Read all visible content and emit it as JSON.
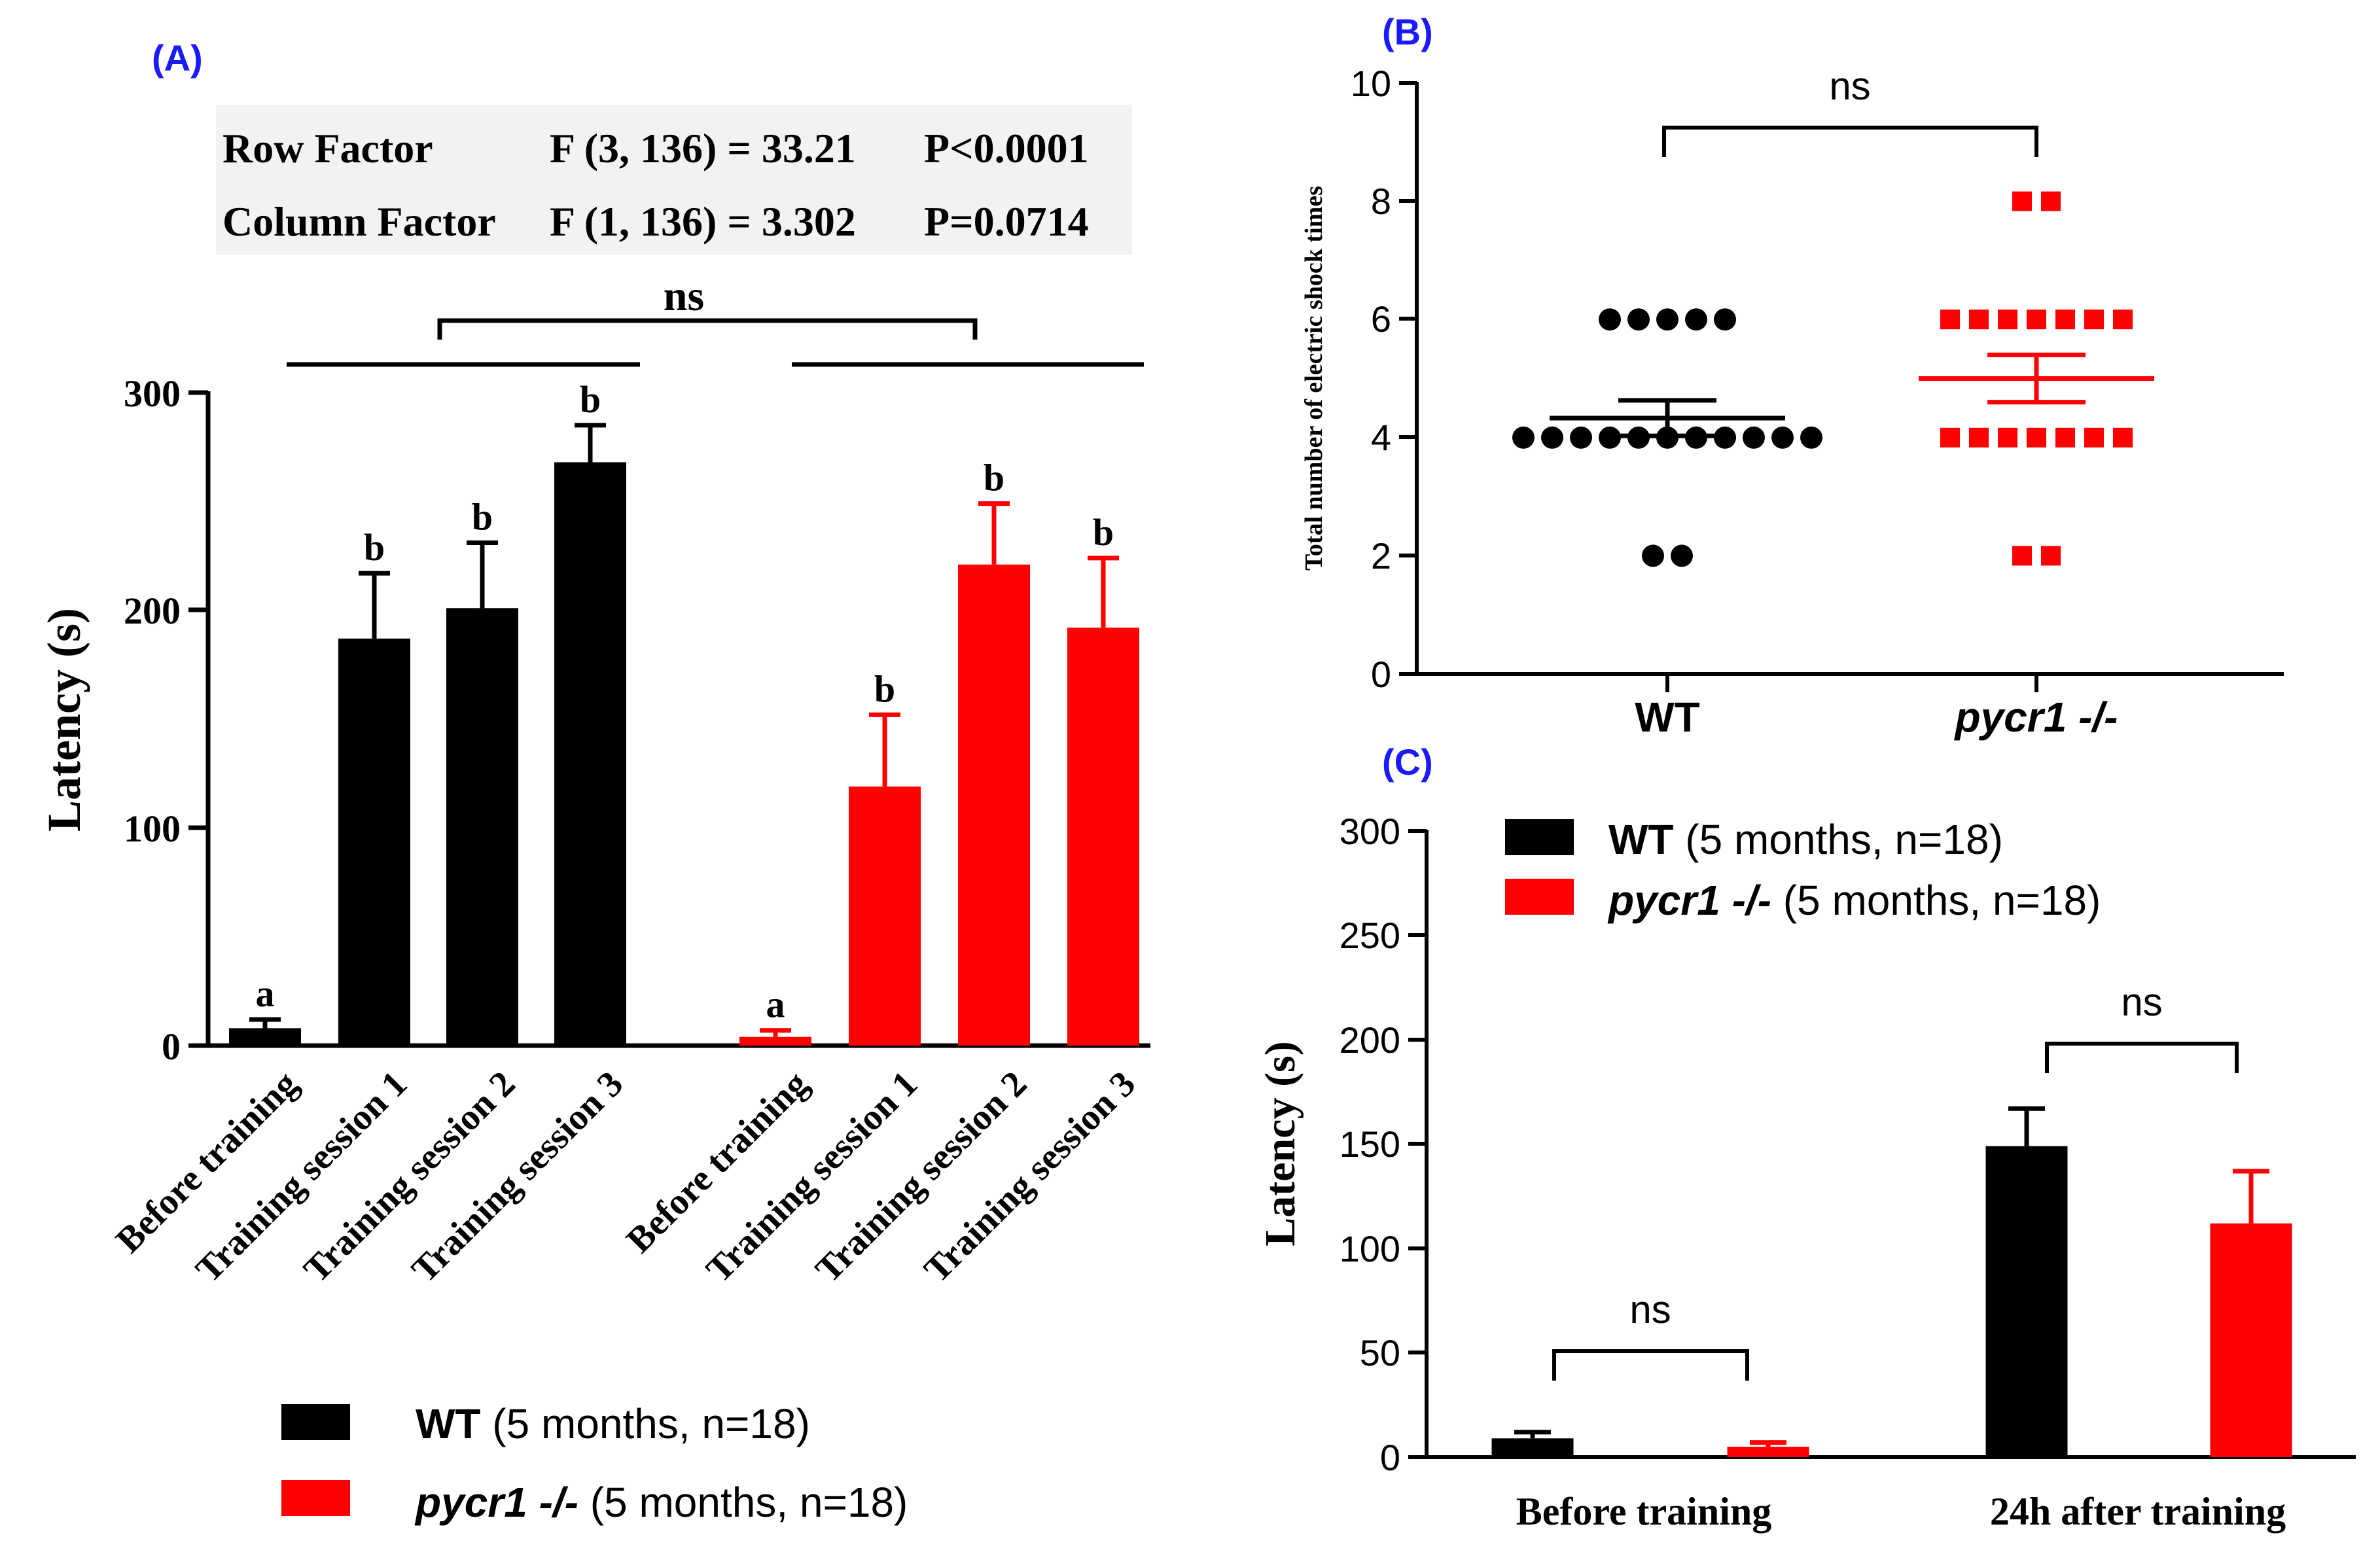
{
  "colors": {
    "wt": "#000000",
    "ko": "#ff0000",
    "panel_label": "#1a1aff",
    "table_bg": "#f2f2f2"
  },
  "chart_data": [
    {
      "panel": "(A)",
      "type": "bar",
      "ylabel": "Latency (s)",
      "ylim": [
        0,
        300
      ],
      "yticks": [
        "0",
        "100",
        "200",
        "300"
      ],
      "groups": [
        {
          "series": "WT (5 months, n=18)",
          "categories": [
            "Before training",
            "Training session 1",
            "Training session 2",
            "Training session 3"
          ],
          "values": [
            8,
            187,
            201,
            268
          ],
          "errors": [
            4,
            30,
            30,
            17
          ],
          "letters": [
            "a",
            "b",
            "b",
            "b"
          ]
        },
        {
          "series": "pycr1 -/- (5 months, n=18)",
          "categories": [
            "Before training",
            "Training session 1",
            "Training session 2",
            "Training session 3"
          ],
          "values": [
            4,
            119,
            221,
            192
          ],
          "errors": [
            3,
            33,
            28,
            32
          ],
          "letters": [
            "a",
            "b",
            "b",
            "b"
          ]
        }
      ],
      "comparison": "ns",
      "stats_table": [
        {
          "factor": "Row Factor",
          "f": "F (3, 136) = 33.21",
          "p": "P<0.0001"
        },
        {
          "factor": "Column Factor",
          "f": "F (1, 136) = 3.302",
          "p": "P=0.0714"
        }
      ],
      "legend": [
        {
          "name_main": "WT",
          "name_rest": " (5 months, n=18)"
        },
        {
          "name_main": "pycr1 -/-",
          "name_rest": " (5 months, n=18)"
        }
      ]
    },
    {
      "panel": "(B)",
      "type": "scatter",
      "ylabel": "Total number of electric shock times",
      "ylim": [
        0,
        10
      ],
      "yticks": [
        "0",
        "2",
        "4",
        "6",
        "8",
        "10"
      ],
      "categories": [
        "WT",
        "pycr1 -/-"
      ],
      "series": [
        {
          "name": "WT",
          "points": [
            {
              "y": 6,
              "n": 5
            },
            {
              "y": 4,
              "n": 11
            },
            {
              "y": 2,
              "n": 2
            }
          ],
          "mean": 4.33,
          "sem": 0.3
        },
        {
          "name": "pycr1 -/-",
          "points": [
            {
              "y": 8,
              "n": 2
            },
            {
              "y": 6,
              "n": 7
            },
            {
              "y": 4,
              "n": 7
            },
            {
              "y": 2,
              "n": 2
            }
          ],
          "mean": 5.0,
          "sem": 0.4
        }
      ],
      "comparison": "ns"
    },
    {
      "panel": "(C)",
      "type": "bar",
      "ylabel": "Latency (s)",
      "ylim": [
        0,
        300
      ],
      "yticks": [
        "0",
        "50",
        "100",
        "150",
        "200",
        "250",
        "300"
      ],
      "categories": [
        "Before training",
        "24h after training"
      ],
      "series": [
        {
          "name": "WT (5 months, n=18)",
          "values": [
            9,
            149
          ],
          "errors": [
            3,
            18
          ]
        },
        {
          "name": "pycr1 -/- (5 months, n=18)",
          "values": [
            5,
            112
          ],
          "errors": [
            2,
            25
          ]
        }
      ],
      "comparisons": [
        "ns",
        "ns"
      ],
      "legend": [
        {
          "name_main": "WT",
          "name_rest": " (5 months, n=18)"
        },
        {
          "name_main": "pycr1 -/-",
          "name_rest": " (5 months, n=18)"
        }
      ]
    }
  ]
}
